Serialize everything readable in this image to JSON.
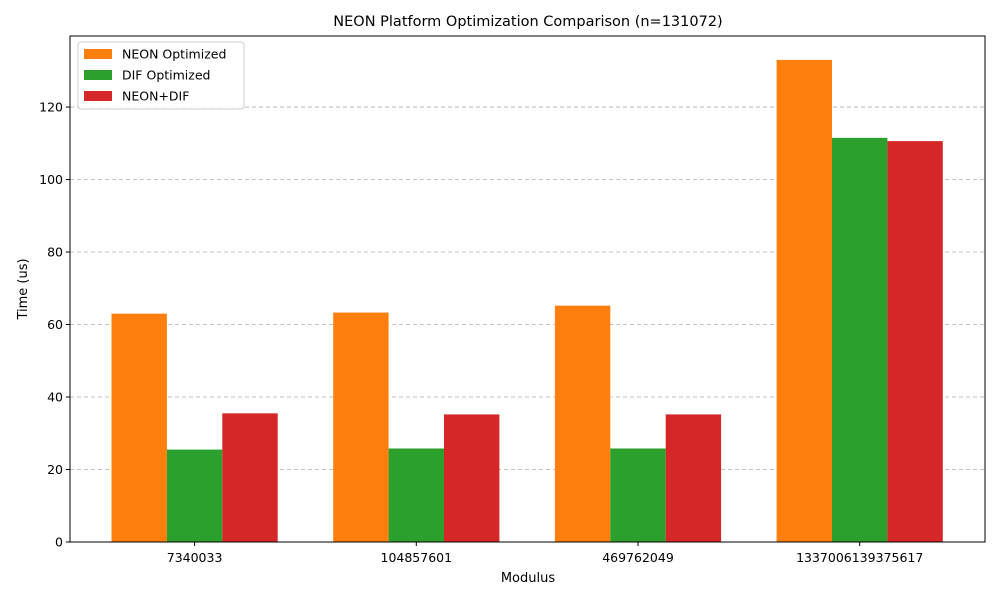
{
  "chart_data": {
    "type": "bar",
    "title": "NEON Platform Optimization Comparison (n=131072)",
    "xlabel": "Modulus",
    "ylabel": "Time (us)",
    "categories": [
      "7340033",
      "104857601",
      "469762049",
      "1337006139375617"
    ],
    "series": [
      {
        "name": "NEON Optimized",
        "color": "#ff7f0e",
        "values": [
          63.0,
          63.3,
          65.2,
          133.0
        ]
      },
      {
        "name": "DIF Optimized",
        "color": "#2ca02c",
        "values": [
          25.5,
          25.8,
          25.8,
          111.5
        ]
      },
      {
        "name": "NEON+DIF",
        "color": "#d62728",
        "values": [
          35.5,
          35.2,
          35.2,
          110.6
        ]
      }
    ],
    "ylim": [
      0,
      139.6
    ],
    "yticks": [
      0,
      20,
      40,
      60,
      80,
      100,
      120
    ],
    "grid": "y-axis dashed",
    "legend_position": "upper-left"
  }
}
